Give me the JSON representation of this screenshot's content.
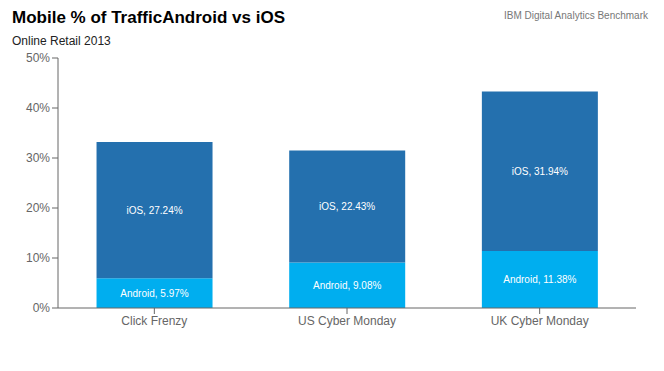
{
  "chart_data": {
    "type": "bar",
    "title": "Mobile % of TrafficAndroid vs iOS",
    "subtitle": "Online Retail 2013",
    "annotations": [
      "IBM Digital Analytics Benchmark"
    ],
    "categories": [
      "Click Frenzy",
      "US Cyber Monday",
      "UK Cyber Monday"
    ],
    "series": [
      {
        "name": "Android",
        "color": "#00AEEF",
        "values": [
          5.97,
          9.08,
          11.38
        ],
        "value_labels": [
          "Android, 5.97%",
          "Android, 9.08%",
          "Android, 11.38%"
        ]
      },
      {
        "name": "iOS",
        "color": "#2470AE",
        "values": [
          27.24,
          22.43,
          31.94
        ],
        "value_labels": [
          "iOS, 27.24%",
          "iOS, 22.43%",
          "iOS, 31.94%"
        ]
      }
    ],
    "stacked": true,
    "data_labels": true,
    "grid": false,
    "ylim": [
      0,
      50
    ],
    "yticks": [
      {
        "value": 0,
        "label": "0%"
      },
      {
        "value": 10,
        "label": "10%"
      },
      {
        "value": 20,
        "label": "20%"
      },
      {
        "value": 30,
        "label": "30%"
      },
      {
        "value": 40,
        "label": "40%"
      },
      {
        "value": 50,
        "label": "50%"
      }
    ]
  }
}
